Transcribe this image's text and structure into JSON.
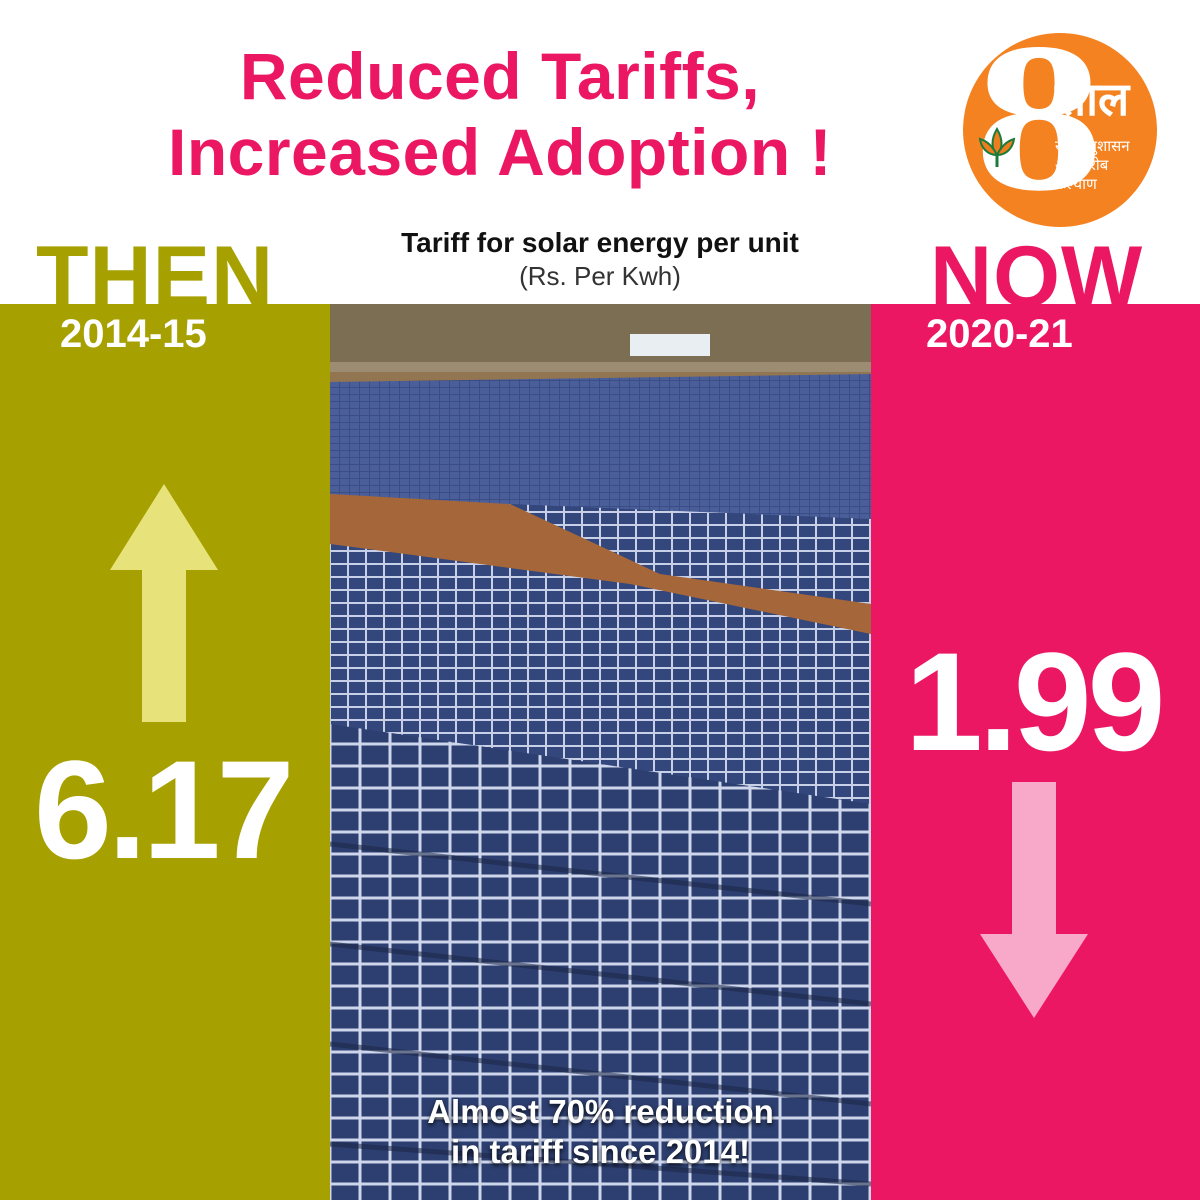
{
  "title": {
    "line1": "Reduced Tariffs,",
    "line2": "Increased Adoption !"
  },
  "logo": {
    "numeral": "8",
    "word": "साल",
    "tagline": "सेवा, सुशासन और गरीब कल्याण"
  },
  "subtitle": {
    "main": "Tariff for solar energy per unit",
    "unit": "(Rs. Per Kwh)"
  },
  "then": {
    "label": "THEN",
    "year": "2014-15",
    "value": "6.17"
  },
  "now": {
    "label": "NOW",
    "year": "2020-21",
    "value": "1.99"
  },
  "caption": {
    "line1": "Almost 70% reduction",
    "line2": "in tariff since 2014!"
  },
  "colors": {
    "pink": "#ec1763",
    "olive": "#a6a100",
    "orange": "#f58220",
    "arrow_up": "#e7e37a",
    "arrow_down": "#f8a8c8"
  },
  "icons": {
    "up": "arrow-up-icon",
    "down": "arrow-down-icon",
    "lotus": "lotus-icon"
  }
}
